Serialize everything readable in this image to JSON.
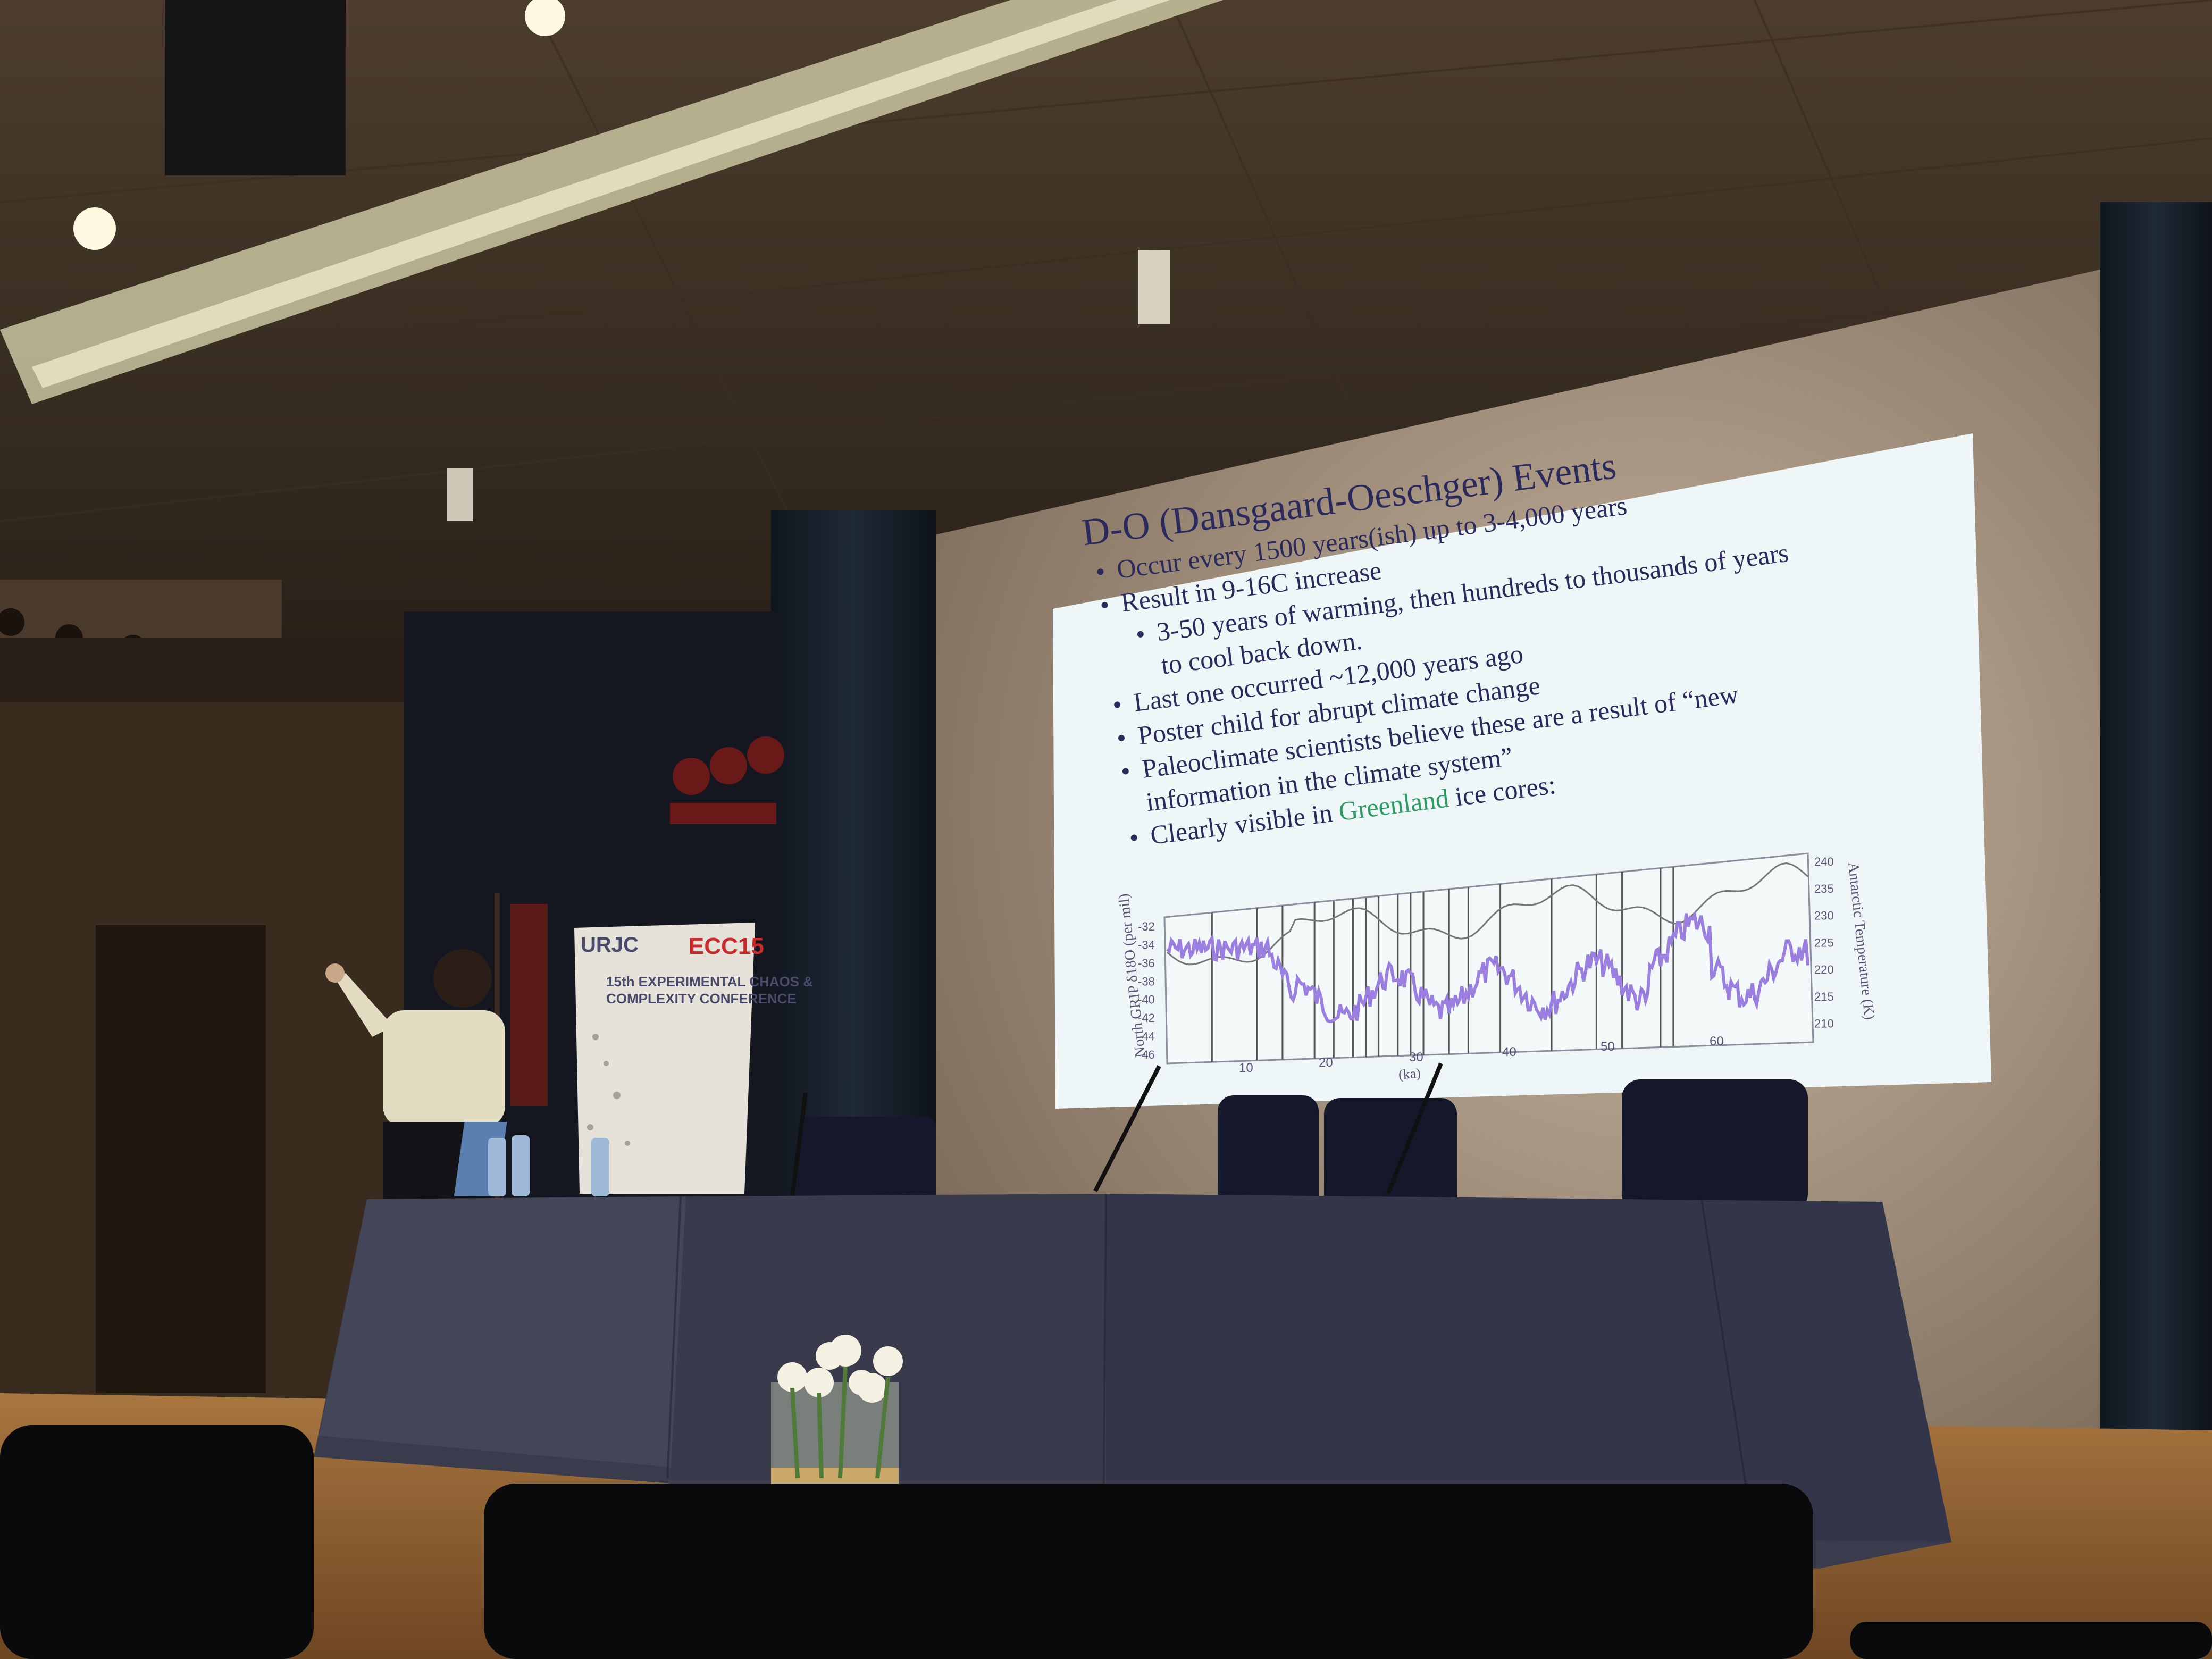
{
  "slide": {
    "title": "D-O (Dansgaard-Oeschger) Events",
    "bullets": [
      {
        "text": "Occur every 1500 years(ish) up to 3-4,000 years",
        "level": 0
      },
      {
        "text": "Result in 9-16C increase",
        "level": 0
      },
      {
        "text": "3-50 years of warming, then hundreds to thousands of years",
        "level": 1
      },
      {
        "text": "to cool back down.",
        "level": 1,
        "continuation": true
      },
      {
        "text": "Last one occurred ~12,000 years ago",
        "level": 0
      },
      {
        "text": "Poster child for abrupt climate change",
        "level": 0
      },
      {
        "text": "Paleoclimate scientists believe these are a result of “new",
        "level": 0
      },
      {
        "text": "information in the climate system”",
        "level": 0,
        "continuation": true
      }
    ],
    "last_bullet": {
      "prefix": "Clearly visible in ",
      "highlight": "Greenland",
      "suffix": " ice cores:"
    },
    "highlight_color": "#2e9a63"
  },
  "chart_data": {
    "type": "line",
    "xlabel": "(ka)",
    "ylabel_left": "North GRIP δ18O (per mil)",
    "ylabel_right": "Antarctic Temperature (K)",
    "x_ticks": [
      "10",
      "20",
      "30",
      "40",
      "50",
      "60"
    ],
    "y_left_ticks": [
      "-32",
      "-34",
      "-36",
      "-38",
      "-40",
      "-42",
      "-44",
      "-46"
    ],
    "y_right_ticks": [
      "240",
      "235",
      "230",
      "225",
      "220",
      "215",
      "210"
    ],
    "series": [
      {
        "color": "#9b7fe0"
      },
      {
        "color": "#777777"
      }
    ]
  },
  "banner": {
    "left_text": "URJC",
    "right_text": "ECC15",
    "subtitle": "15th EXPERIMENTAL CHAOS &\nCOMPLEXITY CONFERENCE"
  },
  "colors": {
    "screen": "#eef6f7",
    "slide_text": "#2b2a5c",
    "tablecloth": "#3a3c4e",
    "stage_floor": "#9a6a3c",
    "ceiling": "#4a3b2c"
  }
}
